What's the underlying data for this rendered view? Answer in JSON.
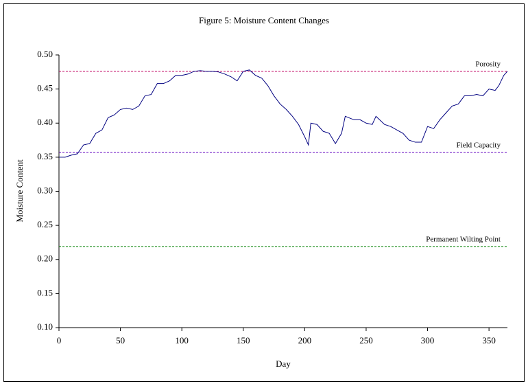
{
  "chart_data": {
    "type": "line",
    "title": "Figure 5: Moisture Content Changes",
    "xlabel": "Day",
    "ylabel": "Moisture Content",
    "x": [
      0,
      5,
      10,
      15,
      20,
      25,
      30,
      35,
      40,
      45,
      50,
      55,
      60,
      65,
      70,
      75,
      80,
      85,
      90,
      95,
      100,
      105,
      110,
      115,
      120,
      125,
      130,
      135,
      140,
      145,
      150,
      155,
      160,
      165,
      170,
      175,
      180,
      185,
      190,
      195,
      200,
      203,
      205,
      210,
      215,
      220,
      225,
      230,
      233,
      240,
      245,
      250,
      255,
      258,
      265,
      270,
      275,
      280,
      285,
      290,
      295,
      300,
      305,
      310,
      315,
      320,
      325,
      330,
      335,
      340,
      345,
      350,
      355,
      358,
      362,
      365
    ],
    "series": [
      {
        "name": "Moisture Content",
        "color": "#000080",
        "values": [
          0.35,
          0.35,
          0.353,
          0.355,
          0.368,
          0.37,
          0.385,
          0.39,
          0.408,
          0.412,
          0.42,
          0.422,
          0.42,
          0.425,
          0.44,
          0.442,
          0.458,
          0.458,
          0.462,
          0.47,
          0.47,
          0.472,
          0.476,
          0.477,
          0.476,
          0.476,
          0.475,
          0.472,
          0.468,
          0.462,
          0.476,
          0.478,
          0.47,
          0.466,
          0.455,
          0.44,
          0.428,
          0.42,
          0.41,
          0.398,
          0.38,
          0.368,
          0.4,
          0.398,
          0.388,
          0.385,
          0.37,
          0.385,
          0.41,
          0.405,
          0.405,
          0.4,
          0.398,
          0.41,
          0.398,
          0.395,
          0.39,
          0.385,
          0.375,
          0.372,
          0.372,
          0.395,
          0.392,
          0.405,
          0.415,
          0.425,
          0.428,
          0.44,
          0.44,
          0.442,
          0.44,
          0.45,
          0.448,
          0.455,
          0.47,
          0.476
        ]
      }
    ],
    "reference_lines": [
      {
        "label": "Porosity",
        "value": 0.476,
        "color": "#c00060"
      },
      {
        "label": "Field Capacity",
        "value": 0.357,
        "color": "#6000c0"
      },
      {
        "label": "Permanent Wilting Point",
        "value": 0.219,
        "color": "#008000"
      }
    ],
    "xlim": [
      0,
      365
    ],
    "xticks": [
      0,
      50,
      100,
      150,
      200,
      250,
      300,
      350
    ],
    "ylim": [
      0.1,
      0.5
    ],
    "yticks": [
      {
        "value": 0.1,
        "label": "0.10"
      },
      {
        "value": 0.15,
        "label": "0.15"
      },
      {
        "value": 0.2,
        "label": "0.20"
      },
      {
        "value": 0.25,
        "label": "0.25"
      },
      {
        "value": 0.3,
        "label": "0.30"
      },
      {
        "value": 0.35,
        "label": "0.35"
      },
      {
        "value": 0.4,
        "label": "0.40"
      },
      {
        "value": 0.45,
        "label": "0.45"
      },
      {
        "value": 0.5,
        "label": "0.50"
      }
    ],
    "grid": false
  }
}
